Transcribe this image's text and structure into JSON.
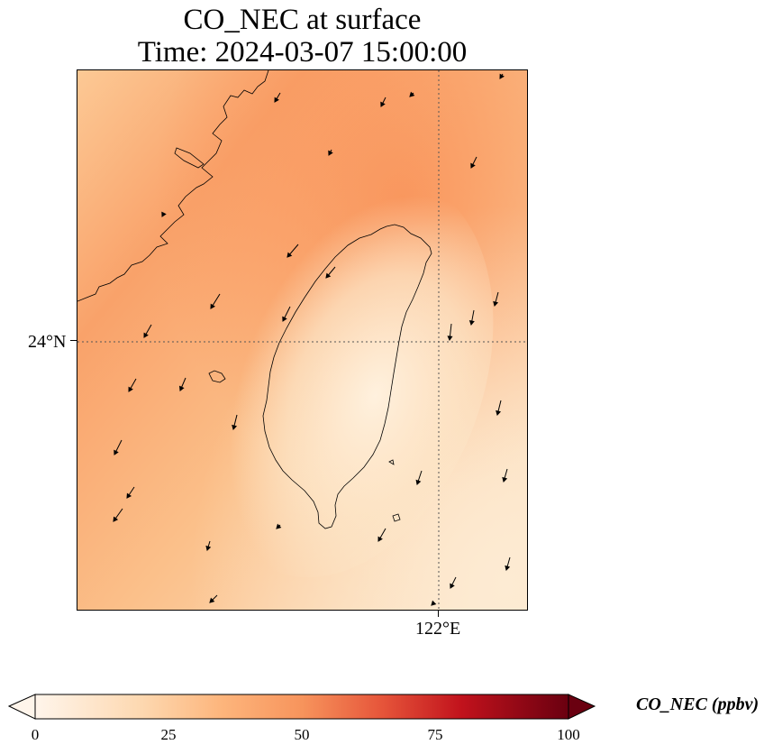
{
  "title": {
    "line1": "CO_NEC at surface",
    "line2": "Time: 2024-03-07 15:00:00"
  },
  "map": {
    "lat_label": "24°N",
    "lon_label": "122°E",
    "gridlines": "dotted"
  },
  "colorbar": {
    "label": "CO_NEC (ppbv)",
    "ticks": [
      "0",
      "25",
      "50",
      "75",
      "100"
    ],
    "min": 0,
    "max": 100,
    "colormap": [
      "#fff5eb",
      "#fdd0a2",
      "#fdae6b",
      "#f16913",
      "#d94801",
      "#a50f15",
      "#67000d"
    ],
    "extend": "both"
  },
  "colors": {
    "field_high": "#f99a64",
    "field_mid": "#fbbd86",
    "field_low": "#fde9cf",
    "coastline": "#000000"
  }
}
